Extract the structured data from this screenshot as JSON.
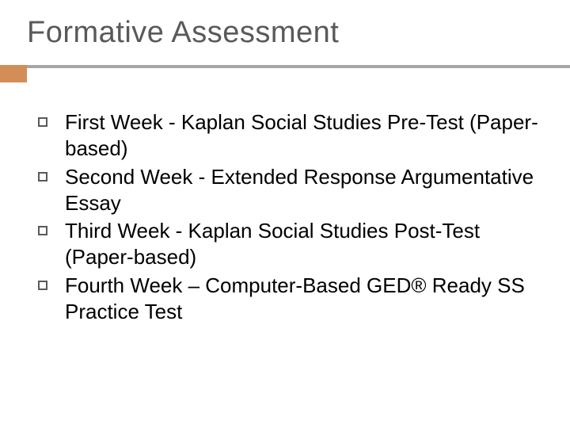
{
  "slide": {
    "title": "Formative Assessment",
    "title_color": "#595959",
    "title_fontsize": 38,
    "divider_color": "#a6a6a6",
    "accent_color": "#d38d56",
    "background_color": "#ffffff",
    "bullets": [
      {
        "text": "First Week - Kaplan Social Studies Pre-Test (Paper-based)"
      },
      {
        "text": "Second Week - Extended Response Argumentative Essay"
      },
      {
        "text": "Third Week - Kaplan Social Studies Post-Test (Paper-based)"
      },
      {
        "text": "Fourth Week – Computer-Based GED® Ready SS Practice Test"
      }
    ],
    "bullet_text_color": "#000000",
    "bullet_fontsize": 26,
    "bullet_marker_border": "#595959"
  }
}
